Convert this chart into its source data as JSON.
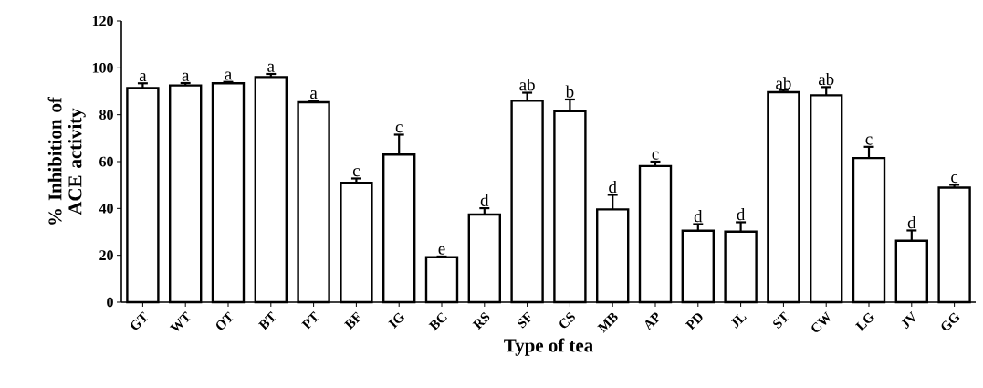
{
  "chart_data": {
    "type": "bar",
    "xlabel": "Type of tea",
    "ylabel": "% Inhibition of ACE activity",
    "categories": [
      "GT",
      "WT",
      "OT",
      "BT",
      "PT",
      "BF",
      "IG",
      "BC",
      "RS",
      "SF",
      "CS",
      "MB",
      "AP",
      "PD",
      "JL",
      "ST",
      "CW",
      "LG",
      "JV",
      "GG"
    ],
    "values": [
      91.4,
      92.5,
      93.4,
      96.1,
      85.3,
      51,
      63,
      19.2,
      37.4,
      86,
      81.5,
      39.6,
      58.1,
      30.5,
      30.1,
      89.6,
      88.3,
      61.5,
      26.2,
      48.9
    ],
    "errors": [
      2,
      1,
      0.6,
      1.3,
      0.7,
      1.8,
      8.5,
      0.3,
      2.7,
      3.4,
      5,
      6.2,
      1.9,
      2.8,
      4,
      0.9,
      3.5,
      4.8,
      4.4,
      1.2
    ],
    "color": "#000000",
    "ylim": [
      0,
      120
    ],
    "yticks": [
      0,
      20,
      40,
      60,
      80,
      100,
      120
    ],
    "grid": false,
    "annotations": [
      {
        "text": "a",
        "x": "GT",
        "y": 93.4
      },
      {
        "text": "a",
        "x": "WT",
        "y": 93.5
      },
      {
        "text": "a",
        "x": "OT",
        "y": 94
      },
      {
        "text": "a",
        "x": "BT",
        "y": 97.4
      },
      {
        "text": "a",
        "x": "PT",
        "y": 86
      },
      {
        "text": "c",
        "x": "BF",
        "y": 52.8
      },
      {
        "text": "c",
        "x": "IG",
        "y": 71.5
      },
      {
        "text": "e",
        "x": "BC",
        "y": 19.5
      },
      {
        "text": "d",
        "x": "RS",
        "y": 40.1
      },
      {
        "text": "ab",
        "x": "SF",
        "y": 89.4
      },
      {
        "text": "b",
        "x": "CS",
        "y": 86.5
      },
      {
        "text": "d",
        "x": "MB",
        "y": 45.8
      },
      {
        "text": "c",
        "x": "AP",
        "y": 60
      },
      {
        "text": "d",
        "x": "PD",
        "y": 33.3
      },
      {
        "text": "d",
        "x": "JL",
        "y": 34.1
      },
      {
        "text": "ab",
        "x": "ST",
        "y": 90.1
      },
      {
        "text": "ab",
        "x": "CW",
        "y": 91.8
      },
      {
        "text": "c",
        "x": "LG",
        "y": 66.3
      },
      {
        "text": "d",
        "x": "JV",
        "y": 30.6
      },
      {
        "text": "c",
        "x": "GG",
        "y": 50.1
      }
    ]
  }
}
